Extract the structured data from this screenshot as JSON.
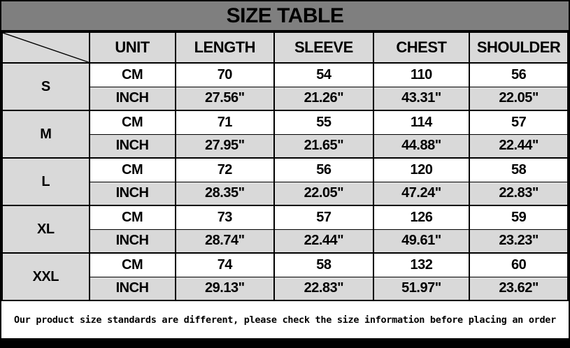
{
  "title": "SIZE TABLE",
  "note": "Our product size standards are different, please check the size information before placing an order",
  "colors": {
    "title_bg": "#7f7f7f",
    "shaded_cell_bg": "#d9d9d9",
    "plain_cell_bg": "#ffffff",
    "border": "#000000",
    "text": "#000000",
    "bottom_bar": "#000000"
  },
  "chart_data": {
    "type": "table",
    "title": "SIZE TABLE",
    "columns": [
      "",
      "UNIT",
      "LENGTH",
      "SLEEVE",
      "CHEST",
      "SHOULDER"
    ],
    "unit_labels": [
      "CM",
      "INCH"
    ],
    "rows": [
      {
        "size": "S",
        "cm": [
          "70",
          "54",
          "110",
          "56"
        ],
        "inch": [
          "27.56\"",
          "21.26\"",
          "43.31\"",
          "22.05\""
        ]
      },
      {
        "size": "M",
        "cm": [
          "71",
          "55",
          "114",
          "57"
        ],
        "inch": [
          "27.95\"",
          "21.65\"",
          "44.88\"",
          "22.44\""
        ]
      },
      {
        "size": "L",
        "cm": [
          "72",
          "56",
          "120",
          "58"
        ],
        "inch": [
          "28.35\"",
          "22.05\"",
          "47.24\"",
          "22.83\""
        ]
      },
      {
        "size": "XL",
        "cm": [
          "73",
          "57",
          "126",
          "59"
        ],
        "inch": [
          "28.74\"",
          "22.44\"",
          "49.61\"",
          "23.23\""
        ]
      },
      {
        "size": "XXL",
        "cm": [
          "74",
          "58",
          "132",
          "60"
        ],
        "inch": [
          "29.13\"",
          "22.83\"",
          "51.97\"",
          "23.62\""
        ]
      }
    ],
    "layout_hints": {
      "size_column_shaded": true,
      "cm_rows_background": "white",
      "inch_rows_background": "light-gray",
      "top_left_cell": "diagonal-slash"
    }
  }
}
